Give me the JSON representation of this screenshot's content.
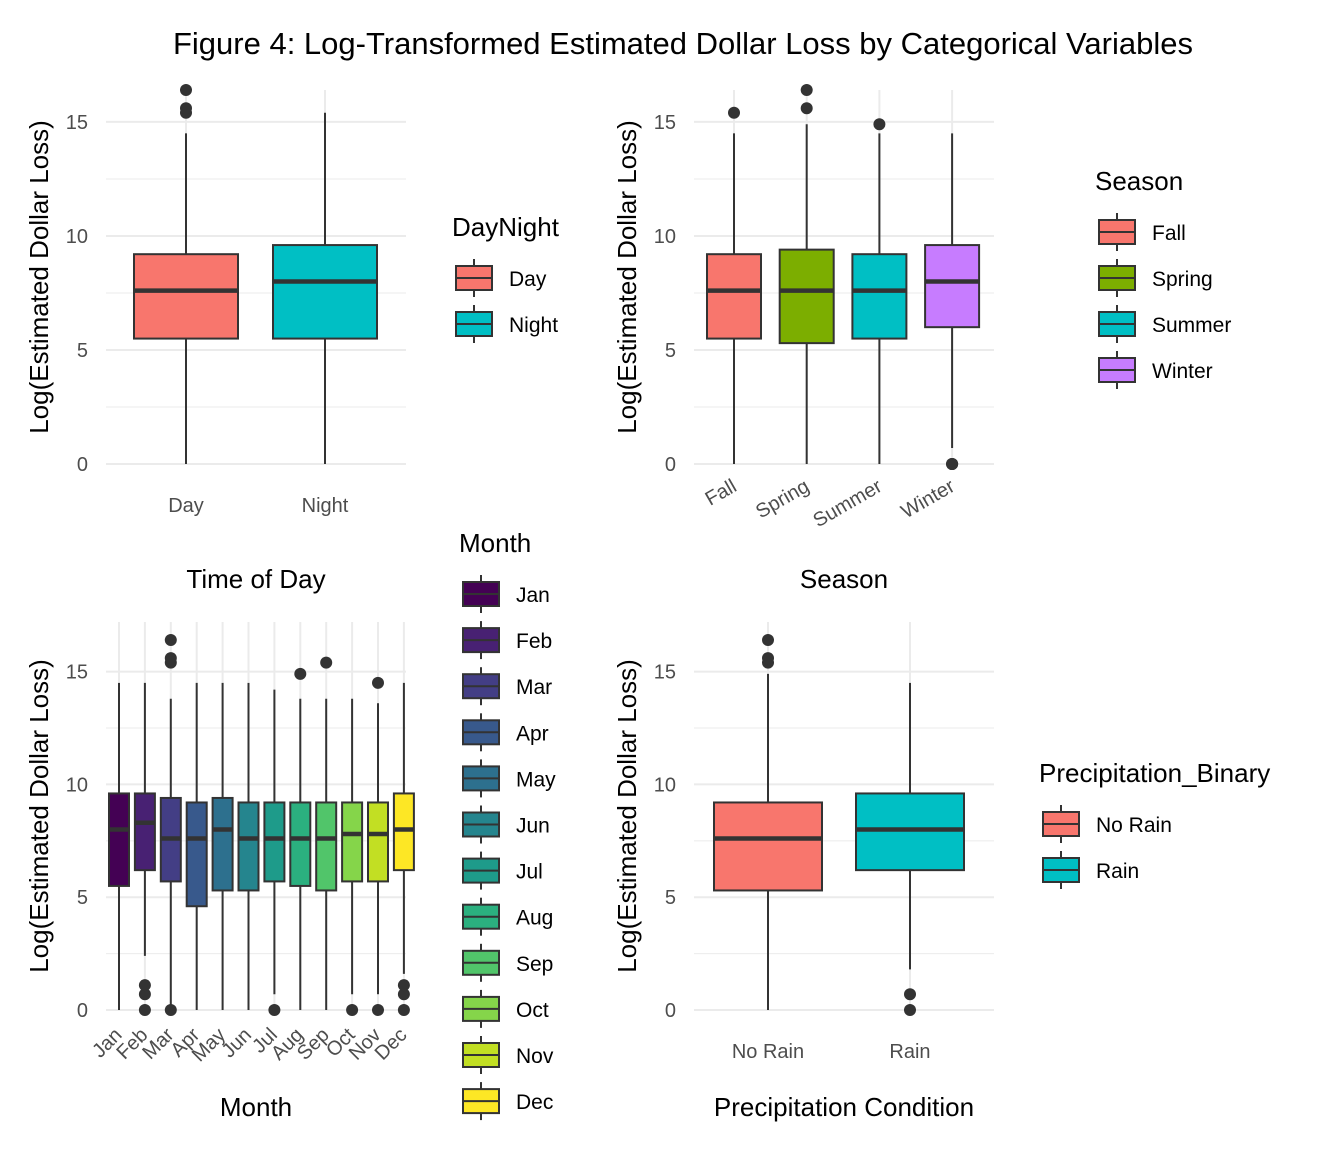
{
  "figure": {
    "title": "Figure 4: Log-Transformed Estimated Dollar Loss by Categorical Variables"
  },
  "colors": {
    "grid": "#ebebeb",
    "box_outline": "#333333",
    "text": "#000000",
    "tick_text": "#4d4d4d"
  },
  "chart_data": [
    {
      "type": "box",
      "xlabel": "Time of Day",
      "ylabel": "Log(Estimated Dollar Loss)",
      "ylim": [
        0,
        16.4
      ],
      "yticks": [
        0,
        5,
        10,
        15
      ],
      "categories": [
        "Day",
        "Night"
      ],
      "legend": {
        "title": "DayNight",
        "placement": "right",
        "entries": [
          "Day",
          "Night"
        ]
      },
      "colors": [
        "#F8766D",
        "#00BFC4"
      ],
      "boxes": [
        {
          "category": "Day",
          "min": 0,
          "q1": 5.5,
          "median": 7.6,
          "q3": 9.2,
          "max": 14.5,
          "outliers": [
            15.4,
            15.6,
            16.4
          ]
        },
        {
          "category": "Night",
          "min": 0,
          "q1": 5.5,
          "median": 8.0,
          "q3": 9.6,
          "max": 15.4,
          "outliers": []
        }
      ]
    },
    {
      "type": "box",
      "xlabel": "Season",
      "ylabel": "Log(Estimated Dollar Loss)",
      "ylim": [
        0,
        16.4
      ],
      "yticks": [
        0,
        5,
        10,
        15
      ],
      "categories": [
        "Fall",
        "Spring",
        "Summer",
        "Winter"
      ],
      "xtick_rotation": 30,
      "legend": {
        "title": "Season",
        "placement": "right",
        "entries": [
          "Fall",
          "Spring",
          "Summer",
          "Winter"
        ]
      },
      "colors": [
        "#F8766D",
        "#7CAE00",
        "#00BFC4",
        "#C77CFF"
      ],
      "boxes": [
        {
          "category": "Fall",
          "min": 0,
          "q1": 5.5,
          "median": 7.6,
          "q3": 9.2,
          "max": 14.5,
          "outliers": [
            15.4
          ]
        },
        {
          "category": "Spring",
          "min": 0,
          "q1": 5.3,
          "median": 7.6,
          "q3": 9.4,
          "max": 14.9,
          "outliers": [
            15.6,
            16.4
          ]
        },
        {
          "category": "Summer",
          "min": 0,
          "q1": 5.5,
          "median": 7.6,
          "q3": 9.2,
          "max": 14.5,
          "outliers": [
            14.9
          ]
        },
        {
          "category": "Winter",
          "min": 0.7,
          "q1": 6.0,
          "median": 8.0,
          "q3": 9.6,
          "max": 14.5,
          "outliers": [
            0,
            0,
            0
          ]
        }
      ]
    },
    {
      "type": "box",
      "xlabel": "Month",
      "ylabel": "Log(Estimated Dollar Loss)",
      "ylim": [
        0,
        17.2
      ],
      "yticks": [
        0,
        5,
        10,
        15
      ],
      "categories": [
        "Jan",
        "Feb",
        "Mar",
        "Apr",
        "May",
        "Jun",
        "Jul",
        "Aug",
        "Sep",
        "Oct",
        "Nov",
        "Dec"
      ],
      "xtick_rotation": 45,
      "legend": {
        "title": "Month",
        "placement": "right",
        "entries": [
          "Jan",
          "Feb",
          "Mar",
          "Apr",
          "May",
          "Jun",
          "Jul",
          "Aug",
          "Sep",
          "Oct",
          "Nov",
          "Dec"
        ]
      },
      "colors": [
        "#440154",
        "#482173",
        "#433E85",
        "#38598C",
        "#2D708E",
        "#25858E",
        "#1E9B8A",
        "#2BB07F",
        "#51C56A",
        "#85D54A",
        "#C2DF23",
        "#FDE725"
      ],
      "boxes": [
        {
          "category": "Jan",
          "min": 0,
          "q1": 5.5,
          "median": 8.0,
          "q3": 9.6,
          "max": 14.5,
          "outliers": []
        },
        {
          "category": "Feb",
          "min": 2.4,
          "q1": 6.2,
          "median": 8.3,
          "q3": 9.6,
          "max": 14.5,
          "outliers": [
            0,
            0.7,
            1.1
          ]
        },
        {
          "category": "Mar",
          "min": 0.1,
          "q1": 5.7,
          "median": 7.6,
          "q3": 9.4,
          "max": 13.8,
          "outliers": [
            0,
            15.4,
            15.6,
            16.4
          ]
        },
        {
          "category": "Apr",
          "min": 0,
          "q1": 4.6,
          "median": 7.6,
          "q3": 9.2,
          "max": 14.5,
          "outliers": []
        },
        {
          "category": "May",
          "min": 0,
          "q1": 5.3,
          "median": 8.0,
          "q3": 9.4,
          "max": 14.5,
          "outliers": []
        },
        {
          "category": "Jun",
          "min": 0,
          "q1": 5.3,
          "median": 7.6,
          "q3": 9.2,
          "max": 14.5,
          "outliers": []
        },
        {
          "category": "Jul",
          "min": 0.7,
          "q1": 5.7,
          "median": 7.6,
          "q3": 9.2,
          "max": 14.2,
          "outliers": [
            0
          ]
        },
        {
          "category": "Aug",
          "min": 0,
          "q1": 5.5,
          "median": 7.6,
          "q3": 9.2,
          "max": 13.8,
          "outliers": [
            14.9
          ]
        },
        {
          "category": "Sep",
          "min": 0,
          "q1": 5.3,
          "median": 7.6,
          "q3": 9.2,
          "max": 13.8,
          "outliers": [
            15.4
          ]
        },
        {
          "category": "Oct",
          "min": 0.7,
          "q1": 5.7,
          "median": 7.8,
          "q3": 9.2,
          "max": 13.8,
          "outliers": [
            0
          ]
        },
        {
          "category": "Nov",
          "min": 0.7,
          "q1": 5.7,
          "median": 7.8,
          "q3": 9.2,
          "max": 13.6,
          "outliers": [
            0,
            14.5
          ]
        },
        {
          "category": "Dec",
          "min": 1.6,
          "q1": 6.2,
          "median": 8.0,
          "q3": 9.6,
          "max": 14.5,
          "outliers": [
            0,
            0.7,
            1.1
          ]
        }
      ]
    },
    {
      "type": "box",
      "xlabel": "Precipitation Condition",
      "ylabel": "Log(Estimated Dollar Loss)",
      "ylim": [
        0,
        17.2
      ],
      "yticks": [
        0,
        5,
        10,
        15
      ],
      "categories": [
        "No Rain",
        "Rain"
      ],
      "legend": {
        "title": "Precipitation_Binary",
        "placement": "right",
        "entries": [
          "No Rain",
          "Rain"
        ]
      },
      "colors": [
        "#F8766D",
        "#00BFC4"
      ],
      "boxes": [
        {
          "category": "No Rain",
          "min": 0,
          "q1": 5.3,
          "median": 7.6,
          "q3": 9.2,
          "max": 14.9,
          "outliers": [
            15.4,
            15.6,
            16.4
          ]
        },
        {
          "category": "Rain",
          "min": 1.8,
          "q1": 6.2,
          "median": 8.0,
          "q3": 9.6,
          "max": 14.5,
          "outliers": [
            0,
            0.7
          ]
        }
      ]
    }
  ]
}
